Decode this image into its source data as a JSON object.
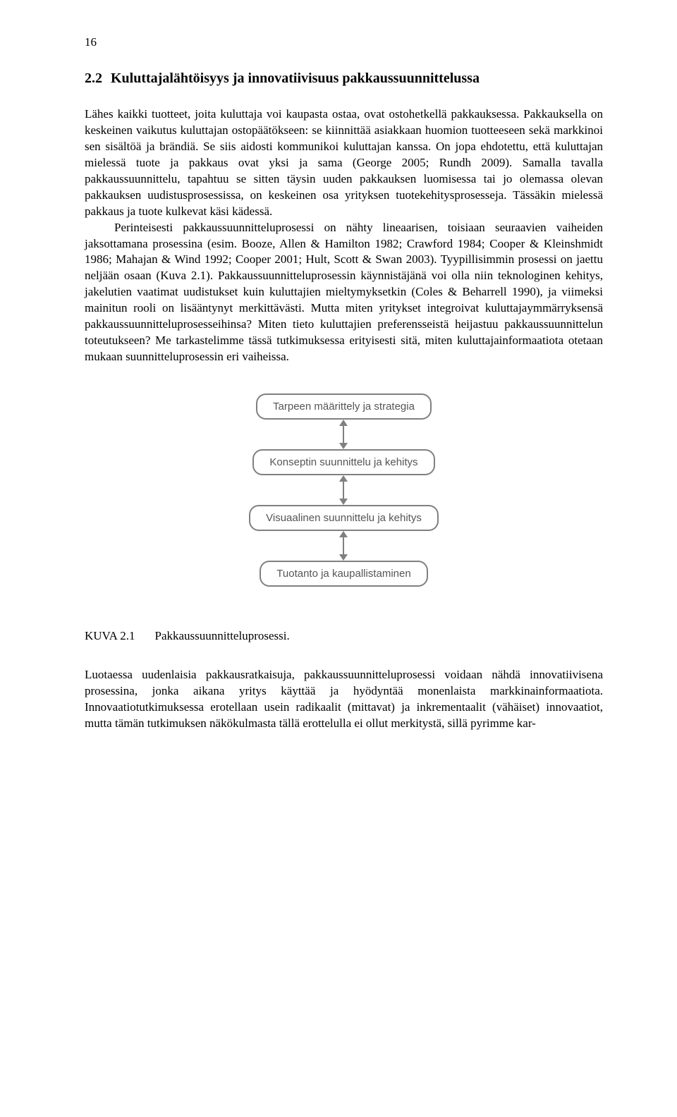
{
  "page_number": "16",
  "section": {
    "number": "2.2",
    "title": "Kuluttajalähtöisyys ja innovatiivisuus pakkaussuunnittelussa"
  },
  "paragraphs": {
    "p1": "Lähes kaikki tuotteet, joita kuluttaja voi kaupasta ostaa, ovat ostohetkellä pakkauksessa. Pakkauksella on keskeinen vaikutus kuluttajan ostopäätökseen: se kiinnittää asiakkaan huomion tuotteeseen sekä markkinoi sen sisältöä ja brändiä. Se siis aidosti kommunikoi kuluttajan kanssa. On jopa ehdotettu, että kuluttajan mielessä tuote ja pakkaus ovat yksi ja sama (George 2005; Rundh 2009). Samalla tavalla pakkaussuunnittelu, tapahtuu se sitten täysin uuden pakkauksen luomisessa tai jo olemassa olevan pakkauksen uudistusprosessissa, on keskeinen osa yrityksen tuotekehitysprosesseja. Tässäkin mielessä pakkaus ja tuote kulkevat käsi kädessä.",
    "p2": "Perinteisesti pakkaussuunnitteluprosessi on nähty lineaarisen, toisiaan seuraavien vaiheiden jaksottamana prosessina (esim. Booze, Allen & Hamilton 1982; Crawford 1984; Cooper & Kleinshmidt 1986; Mahajan & Wind 1992; Cooper 2001; Hult, Scott & Swan 2003). Tyypillisimmin prosessi on jaettu neljään osaan (Kuva 2.1). Pakkaussuunnitteluprosessin käynnistäjänä voi olla niin teknologinen kehitys, jakelutien vaatimat uudistukset kuin kuluttajien mieltymyksetkin (Coles & Beharrell 1990), ja viimeksi mainitun rooli on lisääntynyt merkittävästi. Mutta miten yritykset integroivat kuluttajaymmärryksensä pakkaussuunnitteluprosesseihinsa? Miten tieto kuluttajien preferensseistä heijastuu pakkaussuunnittelun toteutukseen? Me tarkastelimme tässä tutkimuksessa erityisesti sitä, miten kuluttajainformaatiota otetaan mukaan suunnitteluprosessin eri vaiheissa.",
    "p3": "Luotaessa uudenlaisia pakkausratkaisuja, pakkaussuunnitteluprosessi voidaan nähdä innovatiivisena prosessina, jonka aikana yritys käyttää ja hyödyntää monenlaista markkinainformaatiota. Innovaatiotutkimuksessa erotellaan usein radikaalit (mittavat) ja inkrementaalit (vähäiset) innovaatiot, mutta tämän tutkimuksen näkökulmasta tällä erottelulla ei ollut merkitystä, sillä pyrimme kar-"
  },
  "flowchart": {
    "type": "flowchart",
    "node_border_color": "#808080",
    "node_text_color": "#555555",
    "node_border_radius": 14,
    "node_border_width": 2,
    "node_font_family": "Arial",
    "node_font_size": 15,
    "arrow_color": "#808080",
    "connector": "bidirectional",
    "nodes": [
      {
        "id": "n1",
        "label": "Tarpeen määrittely ja strategia"
      },
      {
        "id": "n2",
        "label": "Konseptin suunnittelu ja kehitys"
      },
      {
        "id": "n3",
        "label": "Visuaalinen suunnittelu ja kehitys"
      },
      {
        "id": "n4",
        "label": "Tuotanto ja kaupallistaminen"
      }
    ]
  },
  "figure": {
    "label": "KUVA 2.1",
    "caption": "Pakkaussuunnitteluprosessi."
  }
}
